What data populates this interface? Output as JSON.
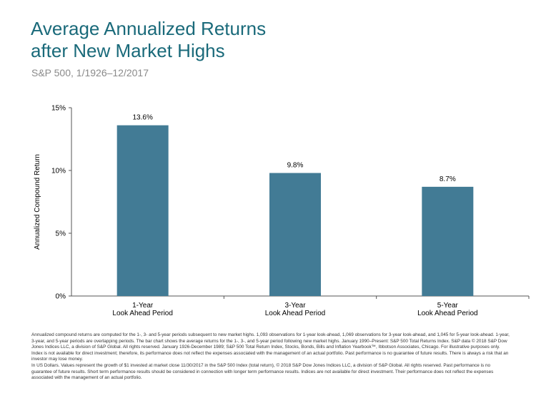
{
  "header": {
    "title_line1": "Average Annualized Returns",
    "title_line2": "after New Market Highs",
    "subtitle": "S&P 500, 1/1926–12/2017"
  },
  "colors": {
    "title": "#1a6a7a",
    "bar": "#427b95",
    "axis": "#555555"
  },
  "chart_data": {
    "type": "bar",
    "title": "Average Annualized Returns after New Market Highs",
    "subtitle": "S&P 500, 1/1926–12/2017",
    "ylabel": "Annualized Compound Return",
    "xlabel": "",
    "ylim": [
      0,
      15
    ],
    "yticks": [
      0,
      5,
      10,
      15
    ],
    "ytick_labels": [
      "0%",
      "5%",
      "10%",
      "15%"
    ],
    "categories": [
      [
        "1-Year",
        "Look Ahead Period"
      ],
      [
        "3-Year",
        "Look Ahead Period"
      ],
      [
        "5-Year",
        "Look Ahead Period"
      ]
    ],
    "values": [
      13.6,
      9.8,
      8.7
    ],
    "data_labels": [
      "13.6%",
      "9.8%",
      "8.7%"
    ],
    "grid": false,
    "legend": "none"
  },
  "footnotes": {
    "p1": "Annualized compound returns are computed for the 1-, 3- and 5-year periods subsequent to new market highs. 1,093 observations for 1-year look-ahead, 1,069 observations for 3-year look-ahead, and 1,045 for 5-year look-ahead. 1-year, 3-year, and 5-year periods are overlapping periods. The bar chart shows the average returns for the 1-, 3-, and 5-year period following new market highs. January 1990–Present: S&P 500 Total Returns Index. S&P data © 2018 S&P Dow Jones Indices LLC, a division of S&P Global. All rights reserved. January 1926-December 1989; S&P 500 Total Return Index, Stocks, Bonds, Bills and Inflation Yearbook™, Ibbotson Associates, Chicago. For illustrative purposes only. Index is not available for direct investment; therefore, its performance does not reflect the expenses associated with the management of an actual portfolio. Past performance is no guarantee of future results. There is always a risk that an investor may lose money.",
    "p2": "In US Dollars. Values represent the growth of $1 invested at market close 11/30/2017 in the S&P 500 Index (total return), © 2018 S&P Dow Jones Indices LLC, a division of S&P Global. All rights reserved. Past performance is no guarantee of future results. Short term performance results should be considered in connection with longer term performance results. Indices are not available for direct investment. Their performance does not reflect the expenses associated with the management of an actual portfolio."
  }
}
